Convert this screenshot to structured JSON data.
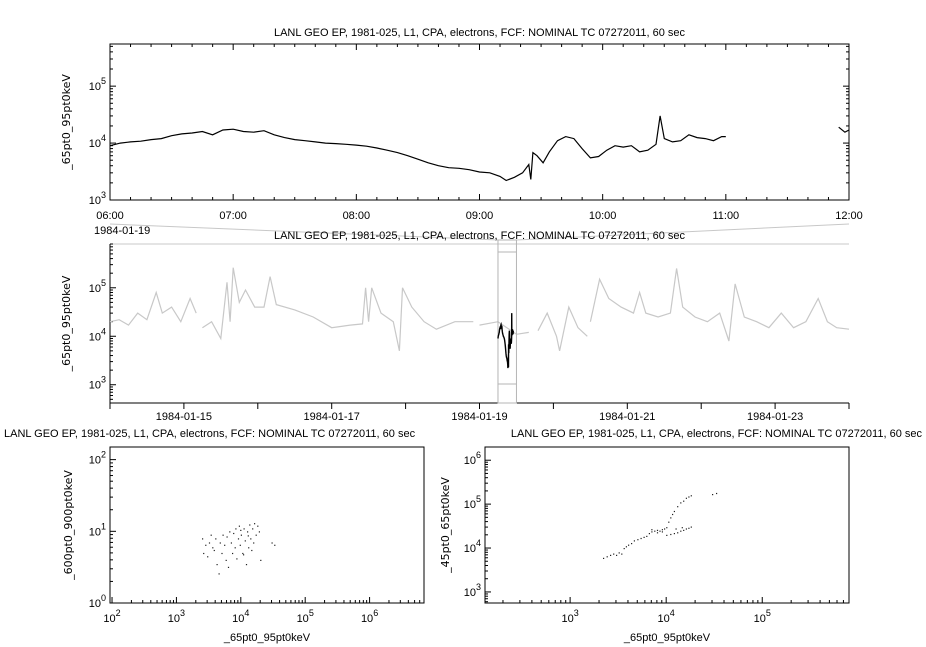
{
  "chart_data": [
    {
      "id": "top",
      "type": "line",
      "title": "LANL GEO EP, 1981-025, L1, CPA, electrons, FCF: NOMINAL TC 07272011, 60 sec",
      "ylabel": "_65pt0_95pt0keV",
      "xlabel": "",
      "x_date_label": "1984-01-19",
      "xscale": "time",
      "yscale": "log",
      "xlim": [
        "1984-01-19T06:00",
        "1984-01-19T12:00"
      ],
      "ylim": [
        1000,
        550000
      ],
      "xticks": [
        "06:00",
        "07:00",
        "08:00",
        "09:00",
        "10:00",
        "11:00",
        "12:00"
      ],
      "yticks": [
        1000,
        10000,
        100000
      ],
      "ytick_labels": [
        [
          "10",
          "3"
        ],
        [
          "10",
          "4"
        ],
        [
          "10",
          "5"
        ]
      ],
      "color": "#000000",
      "series": [
        [
          [
            "06:00",
            9000
          ],
          [
            "06:05",
            10000
          ],
          [
            "06:10",
            10500
          ],
          [
            "06:15",
            10800
          ],
          [
            "06:20",
            11500
          ],
          [
            "06:25",
            12000
          ],
          [
            "06:30",
            13500
          ],
          [
            "06:35",
            14500
          ],
          [
            "06:40",
            15000
          ],
          [
            "06:45",
            16000
          ],
          [
            "06:50",
            14000
          ],
          [
            "06:55",
            17000
          ],
          [
            "07:00",
            17500
          ],
          [
            "07:05",
            16000
          ],
          [
            "07:10",
            15500
          ],
          [
            "07:15",
            16500
          ],
          [
            "07:20",
            14000
          ],
          [
            "07:25",
            12500
          ],
          [
            "07:30",
            11500
          ],
          [
            "07:35",
            11000
          ],
          [
            "07:40",
            10500
          ],
          [
            "07:45",
            10000
          ],
          [
            "07:50",
            9800
          ],
          [
            "07:55",
            9500
          ],
          [
            "08:00",
            9200
          ],
          [
            "08:05",
            8800
          ],
          [
            "08:10",
            8200
          ],
          [
            "08:15",
            7500
          ],
          [
            "08:20",
            6800
          ],
          [
            "08:25",
            6000
          ],
          [
            "08:30",
            5200
          ],
          [
            "08:35",
            4500
          ],
          [
            "08:40",
            4000
          ],
          [
            "08:45",
            3700
          ],
          [
            "08:50",
            3600
          ],
          [
            "08:55",
            3400
          ],
          [
            "09:00",
            3100
          ],
          [
            "09:05",
            3000
          ],
          [
            "09:10",
            2600
          ],
          [
            "09:13",
            2200
          ],
          [
            "09:17",
            2500
          ],
          [
            "09:21",
            3000
          ],
          [
            "09:24",
            4200
          ],
          [
            "09:25",
            2300
          ],
          [
            "09:26",
            6800
          ],
          [
            "09:28",
            6000
          ],
          [
            "09:31",
            4500
          ],
          [
            "09:34",
            7000
          ],
          [
            "09:38",
            11000
          ],
          [
            "09:42",
            13000
          ],
          [
            "09:46",
            12000
          ],
          [
            "09:50",
            8000
          ],
          [
            "09:54",
            5500
          ],
          [
            "09:58",
            5800
          ],
          [
            "10:02",
            7500
          ],
          [
            "10:06",
            9000
          ],
          [
            "10:10",
            8500
          ],
          [
            "10:14",
            9000
          ],
          [
            "10:18",
            7000
          ],
          [
            "10:22",
            7500
          ],
          [
            "10:26",
            9500
          ],
          [
            "10:28",
            30000
          ],
          [
            "10:30",
            12000
          ],
          [
            "10:34",
            10500
          ],
          [
            "10:38",
            11000
          ],
          [
            "10:42",
            14000
          ],
          [
            "10:46",
            12500
          ],
          [
            "10:50",
            12000
          ],
          [
            "10:54",
            11000
          ],
          [
            "10:58",
            13000
          ],
          [
            "11:00",
            13000
          ]
        ],
        [
          [
            "11:55",
            19000
          ],
          [
            "11:58",
            15500
          ],
          [
            "12:00",
            17000
          ]
        ]
      ]
    },
    {
      "id": "middle",
      "type": "line",
      "title": "LANL GEO EP, 1981-025, L1, CPA, electrons, FCF: NOMINAL TC 07272011, 60 sec",
      "ylabel": "_65pt0_95pt0keV",
      "xscale": "time",
      "yscale": "log",
      "xlim": [
        "1984-01-14",
        "1984-01-24"
      ],
      "ylim": [
        420,
        800000
      ],
      "xticks": [
        "1984-01-15",
        "1984-01-17",
        "1984-01-19",
        "1984-01-21",
        "1984-01-23"
      ],
      "yticks": [
        1000,
        10000,
        100000
      ],
      "ytick_labels": [
        [
          "10",
          "3"
        ],
        [
          "10",
          "4"
        ],
        [
          "10",
          "5"
        ]
      ],
      "color": "#c8c8c8",
      "highlight_color": "#000000",
      "highlight_range": [
        "1984-01-19T06:00",
        "1984-01-19T12:00"
      ],
      "series": [
        [
          [
            "1984-01-14T00:00",
            20000
          ],
          [
            "1984-01-14T03:00",
            22000
          ],
          [
            "1984-01-14T06:00",
            17000
          ],
          [
            "1984-01-14T09:00",
            30000
          ],
          [
            "1984-01-14T12:00",
            22000
          ],
          [
            "1984-01-14T15:00",
            80000
          ],
          [
            "1984-01-14T17:00",
            30000
          ],
          [
            "1984-01-14T20:00",
            40000
          ],
          [
            "1984-01-14T23:00",
            20000
          ],
          [
            "1984-01-15T02:00",
            60000
          ],
          [
            "1984-01-15T04:00",
            30000
          ]
        ],
        [
          [
            "1984-01-15T06:00",
            15000
          ],
          [
            "1984-01-15T09:00",
            20000
          ],
          [
            "1984-01-15T12:00",
            9000
          ],
          [
            "1984-01-15T14:00",
            130000
          ],
          [
            "1984-01-15T15:00",
            20000
          ],
          [
            "1984-01-15T16:00",
            260000
          ],
          [
            "1984-01-15T18:00",
            50000
          ],
          [
            "1984-01-15T20:00",
            90000
          ],
          [
            "1984-01-15T23:00",
            40000
          ],
          [
            "1984-01-16T02:00",
            40000
          ],
          [
            "1984-01-16T04:00",
            170000
          ],
          [
            "1984-01-16T06:00",
            45000
          ],
          [
            "1984-01-16T12:00",
            35000
          ],
          [
            "1984-01-16T18:00",
            25000
          ],
          [
            "1984-01-17T00:00",
            15000
          ],
          [
            "1984-01-17T06:00",
            17000
          ],
          [
            "1984-01-17T10:00",
            18000
          ],
          [
            "1984-01-17T11:00",
            100000
          ],
          [
            "1984-01-17T12:00",
            20000
          ],
          [
            "1984-01-17T13:00",
            100000
          ],
          [
            "1984-01-17T16:00",
            30000
          ],
          [
            "1984-01-17T20:00",
            20000
          ],
          [
            "1984-01-17T22:00",
            5000
          ],
          [
            "1984-01-17T23:00",
            100000
          ],
          [
            "1984-01-18T02:00",
            40000
          ],
          [
            "1984-01-18T06:00",
            20000
          ],
          [
            "1984-01-18T10:00",
            14000
          ],
          [
            "1984-01-18T16:00",
            20000
          ],
          [
            "1984-01-18T22:00",
            20000
          ]
        ],
        [
          [
            "1984-01-19T00:00",
            17000
          ],
          [
            "1984-01-19T06:00",
            20000
          ],
          [
            "1984-01-19T12:00",
            11000
          ],
          [
            "1984-01-19T16:00",
            12000
          ]
        ],
        [
          [
            "1984-01-19T19:00",
            13000
          ],
          [
            "1984-01-19T22:00",
            30000
          ],
          [
            "1984-01-20T01:00",
            10000
          ],
          [
            "1984-01-20T02:00",
            5000
          ],
          [
            "1984-01-20T05:00",
            40000
          ],
          [
            "1984-01-20T08:00",
            15000
          ],
          [
            "1984-01-20T11:00",
            10000
          ]
        ],
        [
          [
            "1984-01-20T12:00",
            20000
          ],
          [
            "1984-01-20T15:00",
            150000
          ],
          [
            "1984-01-20T18:00",
            60000
          ],
          [
            "1984-01-20T22:00",
            40000
          ],
          [
            "1984-01-21T02:00",
            30000
          ],
          [
            "1984-01-21T04:00",
            80000
          ],
          [
            "1984-01-21T06:00",
            30000
          ],
          [
            "1984-01-21T10:00",
            25000
          ],
          [
            "1984-01-21T14:00",
            30000
          ],
          [
            "1984-01-21T16:00",
            250000
          ],
          [
            "1984-01-21T18:00",
            40000
          ],
          [
            "1984-01-21T22:00",
            25000
          ],
          [
            "1984-01-22T02:00",
            20000
          ],
          [
            "1984-01-22T06:00",
            30000
          ],
          [
            "1984-01-22T09:00",
            8000
          ],
          [
            "1984-01-22T11:00",
            120000
          ],
          [
            "1984-01-22T14:00",
            25000
          ],
          [
            "1984-01-22T18:00",
            20000
          ],
          [
            "1984-01-22T22:00",
            15000
          ],
          [
            "1984-01-23T02:00",
            30000
          ],
          [
            "1984-01-23T06:00",
            15000
          ],
          [
            "1984-01-23T10:00",
            20000
          ],
          [
            "1984-01-23T14:00",
            60000
          ],
          [
            "1984-01-23T17:00",
            20000
          ],
          [
            "1984-01-23T20:00",
            15000
          ],
          [
            "1984-01-24T00:00",
            14000
          ]
        ]
      ]
    },
    {
      "id": "scatter-left",
      "type": "scatter",
      "title": "LANL GEO EP, 1981-025, L1, CPA, electrons, FCF: NOMINAL TC 07272011, 60 sec",
      "xlabel": "_65pt0_95pt0keV",
      "ylabel": "_600pt0_900pt0keV",
      "xscale": "log",
      "yscale": "log",
      "xlim": [
        93,
        7000000
      ],
      "ylim": [
        1,
        150
      ],
      "xticks": [
        100,
        1000,
        10000,
        100000,
        1000000
      ],
      "xtick_labels": [
        [
          "10",
          "2"
        ],
        [
          "10",
          "3"
        ],
        [
          "10",
          "4"
        ],
        [
          "10",
          "5"
        ],
        [
          "10",
          "6"
        ]
      ],
      "yticks": [
        1,
        10,
        100
      ],
      "ytick_labels": [
        [
          "10",
          "0"
        ],
        [
          "10",
          "1"
        ],
        [
          "10",
          "2"
        ]
      ],
      "points": [
        [
          2500,
          8
        ],
        [
          2600,
          5
        ],
        [
          2800,
          6.5
        ],
        [
          3000,
          4.5
        ],
        [
          3200,
          7
        ],
        [
          3400,
          9
        ],
        [
          3600,
          6
        ],
        [
          3800,
          5.5
        ],
        [
          4000,
          8
        ],
        [
          4200,
          3.5
        ],
        [
          4500,
          2.6
        ],
        [
          4700,
          7
        ],
        [
          5000,
          5
        ],
        [
          5200,
          9
        ],
        [
          5500,
          6.5
        ],
        [
          5800,
          4
        ],
        [
          6000,
          8.5
        ],
        [
          6300,
          3.2
        ],
        [
          6600,
          10
        ],
        [
          7000,
          7
        ],
        [
          7300,
          5
        ],
        [
          7600,
          9.5
        ],
        [
          8000,
          6
        ],
        [
          8200,
          11
        ],
        [
          8500,
          4.2
        ],
        [
          9000,
          8
        ],
        [
          9300,
          12
        ],
        [
          9600,
          6.5
        ],
        [
          10000,
          9
        ],
        [
          10500,
          5
        ],
        [
          11000,
          11
        ],
        [
          11500,
          7.5
        ],
        [
          12000,
          3.5
        ],
        [
          12500,
          10
        ],
        [
          13000,
          6
        ],
        [
          13500,
          12.5
        ],
        [
          14000,
          8
        ],
        [
          14500,
          5.5
        ],
        [
          15000,
          11
        ],
        [
          15500,
          7
        ],
        [
          16000,
          13
        ],
        [
          17000,
          9
        ],
        [
          18000,
          12
        ],
        [
          19000,
          10
        ],
        [
          20000,
          4
        ],
        [
          30000,
          7
        ],
        [
          33000,
          6.5
        ],
        [
          10800,
          4.8
        ],
        [
          12800,
          8.8
        ],
        [
          9800,
          10.5
        ]
      ]
    },
    {
      "id": "scatter-right",
      "type": "scatter",
      "title": "LANL GEO EP, 1981-025, L1, CPA, electrons, FCF: NOMINAL TC 07272011, 60 sec",
      "xlabel": "_65pt0_95pt0keV",
      "ylabel": "_45pt0_65pt0keV",
      "xscale": "log",
      "yscale": "log",
      "xlim": [
        130,
        800000
      ],
      "ylim": [
        560,
        2000000
      ],
      "xticks": [
        1000,
        10000,
        100000
      ],
      "xtick_labels": [
        [
          "10",
          "3"
        ],
        [
          "10",
          "4"
        ],
        [
          "10",
          "5"
        ]
      ],
      "yticks": [
        1000,
        10000,
        100000,
        1000000
      ],
      "ytick_labels": [
        [
          "10",
          "3"
        ],
        [
          "10",
          "4"
        ],
        [
          "10",
          "5"
        ],
        [
          "10",
          "6"
        ]
      ],
      "points": [
        [
          2200,
          6000
        ],
        [
          2400,
          6500
        ],
        [
          2600,
          7000
        ],
        [
          2800,
          7500
        ],
        [
          3000,
          7000
        ],
        [
          3200,
          8000
        ],
        [
          3400,
          7500
        ],
        [
          3600,
          10000
        ],
        [
          3800,
          11000
        ],
        [
          4000,
          12000
        ],
        [
          4300,
          13000
        ],
        [
          4600,
          15000
        ],
        [
          5000,
          16000
        ],
        [
          5400,
          17000
        ],
        [
          5800,
          18000
        ],
        [
          6200,
          19000
        ],
        [
          6600,
          22000
        ],
        [
          7000,
          24000
        ],
        [
          7500,
          25000
        ],
        [
          8000,
          26000
        ],
        [
          8500,
          25000
        ],
        [
          9000,
          27000
        ],
        [
          9500,
          28000
        ],
        [
          10000,
          30000
        ],
        [
          10500,
          40000
        ],
        [
          11000,
          50000
        ],
        [
          11500,
          60000
        ],
        [
          12000,
          70000
        ],
        [
          13000,
          90000
        ],
        [
          14000,
          110000
        ],
        [
          15000,
          120000
        ],
        [
          16000,
          140000
        ],
        [
          17000,
          150000
        ],
        [
          18000,
          160000
        ],
        [
          12000,
          22000
        ],
        [
          13000,
          23000
        ],
        [
          14000,
          25000
        ],
        [
          15000,
          26000
        ],
        [
          16000,
          28000
        ],
        [
          17000,
          29000
        ],
        [
          18000,
          31000
        ],
        [
          11000,
          21000
        ],
        [
          10000,
          20000
        ],
        [
          9000,
          24000
        ],
        [
          8000,
          23000
        ],
        [
          30000,
          170000
        ],
        [
          33000,
          180000
        ],
        [
          7000,
          27000
        ],
        [
          12500,
          28000
        ],
        [
          14500,
          30000
        ]
      ]
    }
  ]
}
